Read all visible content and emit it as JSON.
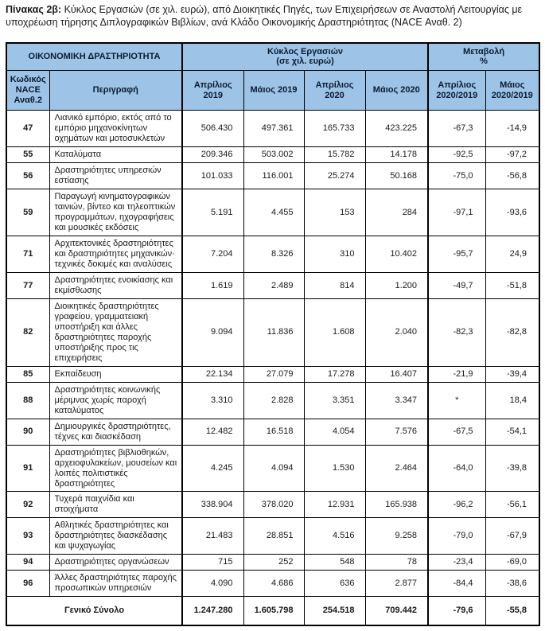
{
  "title": {
    "label": "Πίνακας 2β:",
    "text": " Κύκλος Εργασιών (σε χιλ. ευρώ), από Διοικητικές Πηγές, των Επιχειρήσεων σε Αναστολή Λειτουργίας με υποχρέωση τήρησης Διπλογραφικών Βιβλίων, ανά Κλάδο Οικονομικής Δραστηριότητας (NACE Αναθ. 2)"
  },
  "table": {
    "colors": {
      "header_bg": "#9DC3E6",
      "border": "#000000",
      "body_bg": "#FFFFFF"
    },
    "group_headers": {
      "activity": "ΟΙΚΟΝΟΜΙΚΗ ΔΡΑΣΤΗΡΙΟΤΗΤΑ",
      "turnover": "Κύκλος Εργασιών\n(σε χιλ. ευρώ)",
      "change": "Μεταβολή\n%"
    },
    "columns": [
      "Κωδικός\nNACE\nΑναθ.2",
      "Περιγραφή",
      "Απρίλιος 2019",
      "Μάιος 2019",
      "Απρίλιος\n2020",
      "Μάιος 2020",
      "Απρίλιος\n2020/2019",
      "Μάιος\n2020/2019"
    ],
    "rows": [
      {
        "code": "47",
        "description": "Λιανικό εμπόριο, εκτός από το εμπόριο μηχανοκίνητων οχημάτων και μοτοσυκλετών",
        "values": [
          "506.430",
          "497.361",
          "165.733",
          "423.225"
        ],
        "changes": [
          "-67,3",
          "-14,9"
        ]
      },
      {
        "code": "55",
        "description": "Καταλύματα",
        "values": [
          "209.346",
          "503.002",
          "15.782",
          "14.178"
        ],
        "changes": [
          "-92,5",
          "-97,2"
        ]
      },
      {
        "code": "56",
        "description": "Δραστηριότητες υπηρεσιών εστίασης",
        "values": [
          "101.033",
          "116.001",
          "25.274",
          "50.168"
        ],
        "changes": [
          "-75,0",
          "-56,8"
        ]
      },
      {
        "code": "59",
        "description": "Παραγωγή κινηματογραφικών ταινιών, βίντεο και τηλεοπτικών προγραμμάτων, ηχογραφήσεις και μουσικές εκδόσεις",
        "values": [
          "5.191",
          "4.455",
          "153",
          "284"
        ],
        "changes": [
          "-97,1",
          "-93,6"
        ]
      },
      {
        "code": "71",
        "description": "Αρχιτεκτονικές δραστηριότητες και δραστηριότητες μηχανικών· τεχνικές δοκιμές και αναλύσεις",
        "values": [
          "7.204",
          "8.326",
          "310",
          "10.402"
        ],
        "changes": [
          "-95,7",
          "24,9"
        ]
      },
      {
        "code": "77",
        "description": "Δραστηριότητες ενοικίασης και εκμίσθωσης",
        "values": [
          "1.619",
          "2.489",
          "814",
          "1.200"
        ],
        "changes": [
          "-49,7",
          "-51,8"
        ]
      },
      {
        "code": "82",
        "description": "Διοικητικές δραστηριότητες γραφείου, γραμματειακή υποστήριξη και άλλες δραστηριότητες παροχής υποστήριξης προς τις επιχειρήσεις",
        "values": [
          "9.094",
          "11.836",
          "1.608",
          "2.040"
        ],
        "changes": [
          "-82,3",
          "-82,8"
        ]
      },
      {
        "code": "85",
        "description": "Εκπαίδευση",
        "values": [
          "22.134",
          "27.079",
          "17.278",
          "16.407"
        ],
        "changes": [
          "-21,9",
          "-39,4"
        ]
      },
      {
        "code": "88",
        "description": "Δραστηριότητες κοινωνικής μέριμνας χωρίς παροχή καταλύματος",
        "values": [
          "3.310",
          "2.828",
          "3.351",
          "3.347"
        ],
        "changes": [
          "*",
          "18,4"
        ]
      },
      {
        "code": "90",
        "description": "Δημιουργικές δραστηριότητες, τέχνες και διασκέδαση",
        "values": [
          "12.482",
          "16.518",
          "4.054",
          "7.576"
        ],
        "changes": [
          "-67,5",
          "-54,1"
        ]
      },
      {
        "code": "91",
        "description": "Δραστηριότητες βιβλιοθηκών, αρχειοφυλακείων, μουσείων και λοιπές πολιτιστικές δραστηριότητες",
        "values": [
          "4.245",
          "4.094",
          "1.530",
          "2.464"
        ],
        "changes": [
          "-64,0",
          "-39,8"
        ]
      },
      {
        "code": "92",
        "description": "Τυχερά παιχνίδια και στοιχήματα",
        "values": [
          "338.904",
          "378.020",
          "12.931",
          "165.938"
        ],
        "changes": [
          "-96,2",
          "-56,1"
        ]
      },
      {
        "code": "93",
        "description": "Αθλητικές δραστηριότητες και δραστηριότητες διασκέδασης και ψυχαγωγίας",
        "values": [
          "21.483",
          "28.851",
          "4.516",
          "9.258"
        ],
        "changes": [
          "-79,0",
          "-67,9"
        ]
      },
      {
        "code": "94",
        "description": "Δραστηριότητες οργανώσεων",
        "values": [
          "715",
          "252",
          "548",
          "78"
        ],
        "changes": [
          "-23,4",
          "-69,0"
        ]
      },
      {
        "code": "96",
        "description": "Άλλες δραστηριότητες παροχής προσωπικών υπηρεσιών",
        "values": [
          "4.090",
          "4.686",
          "636",
          "2.877"
        ],
        "changes": [
          "-84,4",
          "-38,6"
        ]
      }
    ],
    "total": {
      "label": "Γενικό Σύνολο",
      "values": [
        "1.247.280",
        "1.605.798",
        "254.518",
        "709.442"
      ],
      "changes": [
        "-79,6",
        "-55,8"
      ]
    }
  }
}
